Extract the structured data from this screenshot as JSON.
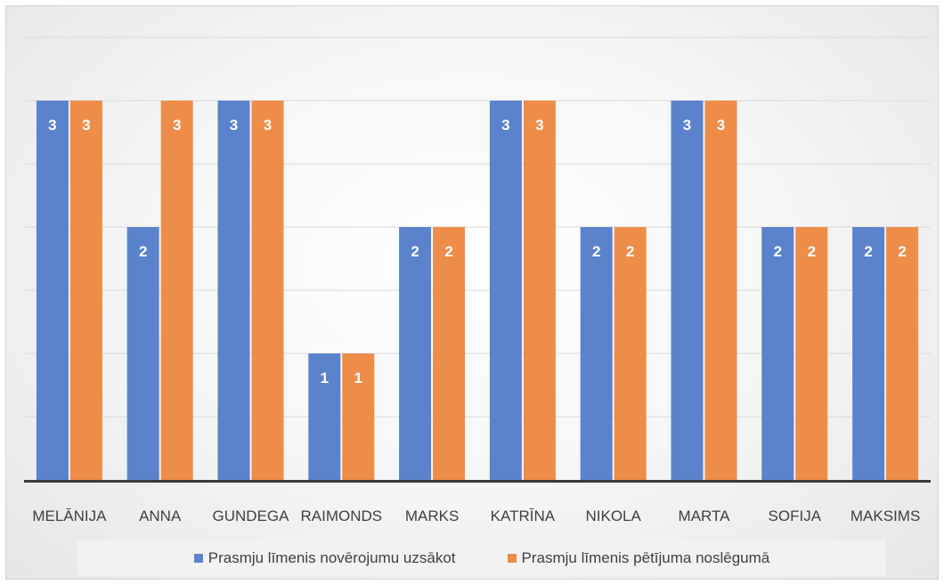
{
  "chart_data": {
    "type": "bar",
    "categories": [
      "MELĀNIJA",
      "ANNA",
      "GUNDEGA",
      "RAIMONDS",
      "MARKS",
      "KATRĪNA",
      "NIKOLA",
      "MARTA",
      "SOFIJA",
      "MAKSIMS"
    ],
    "series": [
      {
        "name": "Prasmju līmenis novērojumu uzsākot",
        "color": "#5b83cc",
        "values": [
          3,
          2,
          3,
          1,
          2,
          3,
          2,
          3,
          2,
          2
        ]
      },
      {
        "name": "Prasmju līmenis pētījuma noslēgumā",
        "color": "#ee8c4a",
        "values": [
          3,
          3,
          3,
          1,
          2,
          3,
          2,
          3,
          2,
          2
        ]
      }
    ],
    "ylim": [
      0,
      3.5
    ],
    "gridline_step": 0.5,
    "grid": true,
    "data_labels": true,
    "legend_position": "bottom",
    "title": "",
    "xlabel": "",
    "ylabel": ""
  }
}
